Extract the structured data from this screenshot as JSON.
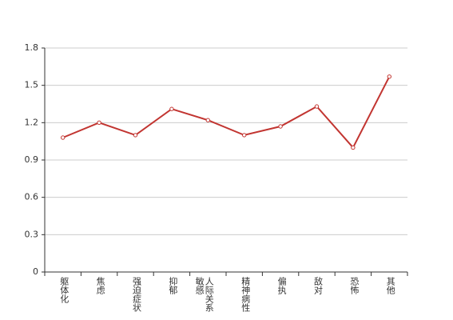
{
  "chart_data": {
    "type": "line",
    "categories": [
      "躯体化",
      "焦虑",
      "强迫症状",
      "抑郁",
      "人际关系敏感",
      "精神病性",
      "偏执",
      "敌对",
      "恐怖",
      "其他"
    ],
    "values": [
      1.08,
      1.2,
      1.1,
      1.31,
      1.22,
      1.1,
      1.17,
      1.33,
      1.0,
      1.57
    ],
    "color": "#c23531",
    "ylim": [
      0,
      1.8
    ],
    "yticks": [
      0,
      0.3,
      0.6,
      0.9,
      1.2,
      1.5,
      1.8
    ],
    "grid": true
  }
}
